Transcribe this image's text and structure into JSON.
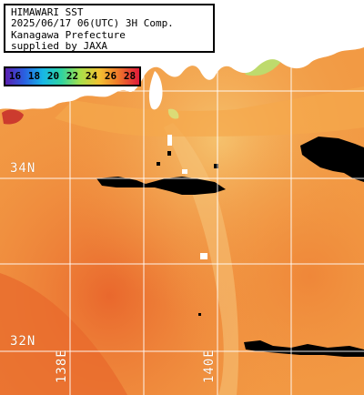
{
  "info": {
    "line1": "HIMAWARI SST",
    "line2": "2025/06/17 06(UTC) 3H Comp.",
    "line3": "Kanagawa Prefecture",
    "line4": "supplied by JAXA"
  },
  "legend": {
    "values": [
      "16",
      "18",
      "20",
      "22",
      "24",
      "26",
      "28"
    ],
    "colors": [
      "#5a1fb0",
      "#2a5fe0",
      "#17b7e6",
      "#2fd4a0",
      "#a8e04a",
      "#f2c232",
      "#f07a2a",
      "#e01a3a"
    ]
  },
  "grid": {
    "lat_labels": [
      "34N",
      "32N"
    ],
    "lon_labels": [
      "138E",
      "140E"
    ]
  },
  "colors": {
    "sea_warm": "#f29a44",
    "sea_warmer": "#ec7a30",
    "sea_cool": "#f5c06a",
    "land": "#ffffff",
    "cloud_mask": "#000000",
    "grid_line": "#ffffff"
  }
}
